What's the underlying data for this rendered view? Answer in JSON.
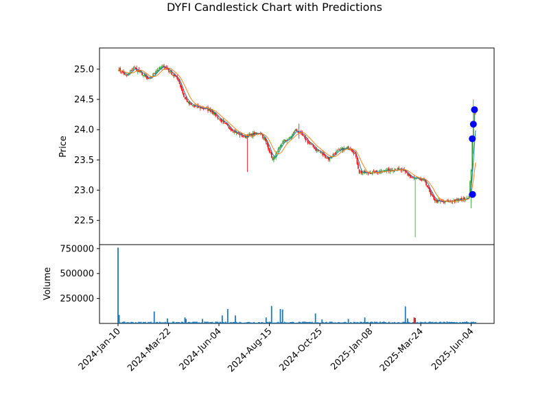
{
  "chart_data": {
    "type": "candlestick",
    "title": "DYFI Candlestick Chart with Predictions",
    "price_panel": {
      "ylabel": "Price",
      "ylim": [
        22.1,
        25.35
      ],
      "yticks": [
        "22.5",
        "23.0",
        "23.5",
        "24.0",
        "24.5",
        "25.0"
      ],
      "ytick_values": [
        22.5,
        23.0,
        23.5,
        24.0,
        24.5,
        25.0
      ],
      "up_color": "#2ca02c",
      "down_color": "#ff0000",
      "ma_short_color": "#1f77b4",
      "ma_long_color": "#ff7f0e",
      "prediction_color": "#0000ff",
      "close_anchors": [
        [
          0,
          25.0
        ],
        [
          4,
          24.95
        ],
        [
          8,
          24.88
        ],
        [
          14,
          25.02
        ],
        [
          20,
          24.95
        ],
        [
          28,
          24.82
        ],
        [
          35,
          24.98
        ],
        [
          42,
          25.05
        ],
        [
          48,
          24.95
        ],
        [
          55,
          24.82
        ],
        [
          60,
          24.55
        ],
        [
          65,
          24.42
        ],
        [
          70,
          24.38
        ],
        [
          78,
          24.35
        ],
        [
          85,
          24.32
        ],
        [
          92,
          24.18
        ],
        [
          100,
          24.05
        ],
        [
          108,
          23.95
        ],
        [
          115,
          23.88
        ],
        [
          122,
          23.92
        ],
        [
          130,
          23.95
        ],
        [
          136,
          23.75
        ],
        [
          141,
          23.5
        ],
        [
          145,
          23.62
        ],
        [
          150,
          23.8
        ],
        [
          156,
          23.85
        ],
        [
          162,
          24.0
        ],
        [
          168,
          23.9
        ],
        [
          174,
          23.78
        ],
        [
          180,
          23.68
        ],
        [
          186,
          23.6
        ],
        [
          192,
          23.52
        ],
        [
          198,
          23.62
        ],
        [
          205,
          23.68
        ],
        [
          212,
          23.7
        ],
        [
          216,
          23.6
        ],
        [
          220,
          23.3
        ],
        [
          226,
          23.28
        ],
        [
          235,
          23.3
        ],
        [
          245,
          23.33
        ],
        [
          255,
          23.35
        ],
        [
          262,
          23.3
        ],
        [
          268,
          23.2
        ],
        [
          274,
          23.18
        ],
        [
          280,
          23.15
        ],
        [
          285,
          22.92
        ],
        [
          290,
          22.82
        ],
        [
          296,
          22.8
        ],
        [
          303,
          22.82
        ],
        [
          310,
          22.83
        ],
        [
          316,
          22.86
        ],
        [
          320,
          22.9
        ],
        [
          322,
          23.35
        ],
        [
          323,
          23.9
        ],
        [
          325,
          24.3
        ]
      ],
      "spikes": [
        {
          "i": 271,
          "low": 22.22,
          "high": 23.2
        },
        {
          "i": 165,
          "low": 23.85,
          "high": 24.1
        },
        {
          "i": 118,
          "low": 23.3,
          "high": 23.55
        },
        {
          "i": 322,
          "low": 22.7,
          "high": 23.1
        },
        {
          "i": 324,
          "low": 23.6,
          "high": 24.5
        }
      ],
      "predictions": [
        {
          "date_index": 322,
          "value": 22.93
        },
        {
          "date_index": 323,
          "value": 23.85
        },
        {
          "date_index": 324,
          "value": 24.09
        },
        {
          "date_index": 325,
          "value": 24.33
        }
      ]
    },
    "volume_panel": {
      "ylabel": "Volume",
      "ylim": [
        0,
        790000
      ],
      "yticks": [
        "250000",
        "500000",
        "750000"
      ],
      "ytick_values": [
        250000,
        500000,
        750000
      ],
      "bar_color": "#1f77b4",
      "down_bar_color": "#d62728",
      "baseline_volume": 12000,
      "spikes": [
        [
          0,
          760000
        ],
        [
          1,
          85000
        ],
        [
          33,
          120000
        ],
        [
          45,
          50000
        ],
        [
          61,
          60000
        ],
        [
          62,
          45000
        ],
        [
          77,
          45000
        ],
        [
          95,
          80000
        ],
        [
          100,
          145000
        ],
        [
          107,
          80000
        ],
        [
          135,
          60000
        ],
        [
          140,
          175000
        ],
        [
          148,
          145000
        ],
        [
          150,
          140000
        ],
        [
          180,
          100000
        ],
        [
          186,
          40000
        ],
        [
          210,
          45000
        ],
        [
          225,
          60000
        ],
        [
          262,
          170000
        ],
        [
          264,
          50000
        ],
        [
          270,
          60000
        ],
        [
          271,
          55000
        ],
        [
          300,
          20000
        ],
        [
          318,
          20000
        ]
      ]
    },
    "x": {
      "start_index": 0,
      "end_index": 326,
      "ticks": [
        {
          "label": "2024-Jan-10",
          "index": 0
        },
        {
          "label": "2024-Mar-22",
          "index": 46
        },
        {
          "label": "2024-Jun-04",
          "index": 92
        },
        {
          "label": "2024-Aug-15",
          "index": 138
        },
        {
          "label": "2024-Oct-25",
          "index": 184
        },
        {
          "label": "2025-Jan-08",
          "index": 230
        },
        {
          "label": "2025-Mar-24",
          "index": 276
        },
        {
          "label": "2025-Jun-04",
          "index": 322
        }
      ]
    }
  }
}
